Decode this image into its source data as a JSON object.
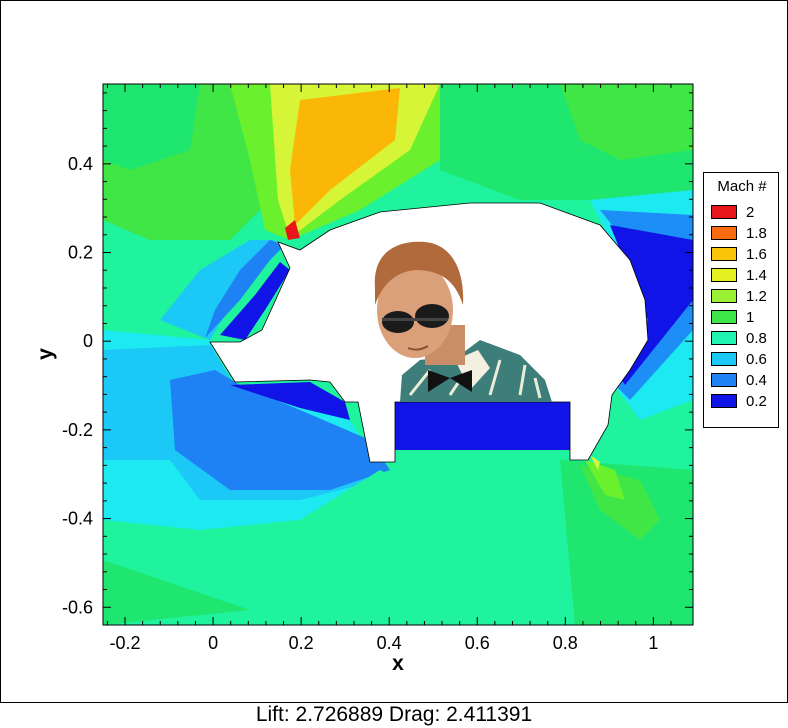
{
  "chart_data": {
    "type": "heatmap",
    "xlabel": "x",
    "ylabel": "y",
    "xlim": [
      -0.25,
      1.09
    ],
    "ylim": [
      -0.64,
      0.58
    ],
    "x_ticks": [
      -0.2,
      0,
      0.2,
      0.4,
      0.6,
      0.8,
      1
    ],
    "x_tick_labels": [
      "-0.2",
      "0",
      "0.2",
      "0.4",
      "0.6",
      "0.8",
      "1"
    ],
    "y_ticks": [
      0.4,
      0.2,
      0,
      -0.2,
      -0.4,
      -0.6
    ],
    "y_tick_labels": [
      "0.4",
      "0.2",
      "0",
      "-0.2",
      "-0.4",
      "-0.6"
    ],
    "legend": {
      "title": "Mach #",
      "placement": "right",
      "levels": [
        {
          "label": "2",
          "color": "#e8161b"
        },
        {
          "label": "",
          "color": "#f86a10"
        },
        {
          "label": "1.8",
          "color": "#fbb708"
        },
        {
          "label": "",
          "color": "#f4e81c"
        },
        {
          "label": "1.6",
          "color": "#d6f536"
        },
        {
          "label": "",
          "color": "#a6f22d"
        },
        {
          "label": "1.4",
          "color": "#6bf02e"
        },
        {
          "label": "",
          "color": "#3fe645"
        },
        {
          "label": "1.2",
          "color": "#1fe66f"
        },
        {
          "label": "",
          "color": "#1ff39e"
        },
        {
          "label": "1",
          "color": "#1cf2c8"
        },
        {
          "label": "",
          "color": "#1ce9f0"
        },
        {
          "label": "0.8",
          "color": "#1fbef5"
        },
        {
          "label": "",
          "color": "#1e8ef7"
        },
        {
          "label": "0.6",
          "color": "#1a5af0"
        },
        {
          "label": "",
          "color": "#0f22e6"
        },
        {
          "label": "0.4",
          "color": "#0f0ee0"
        }
      ],
      "display_labels": [
        "2",
        "1.8",
        "1.6",
        "1.4",
        "1.2",
        "1",
        "0.8",
        "0.6",
        "0.4",
        "0.2"
      ],
      "display_colors": [
        "#e8161b",
        "#f86a10",
        "#fbc60a",
        "#e4f020",
        "#9cf036",
        "#3ee64a",
        "#1ff5b0",
        "#1cc8f6",
        "#1e82f5",
        "#1014e6"
      ]
    },
    "grid": false
  },
  "footer_text": "Lift: 2.726889 Drag: 2.411391"
}
